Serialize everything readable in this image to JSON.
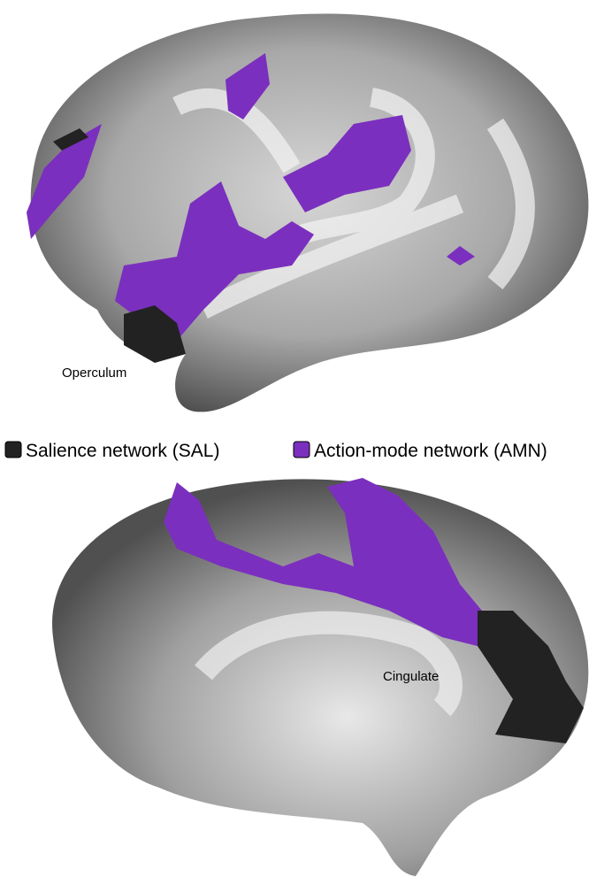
{
  "labels": {
    "top": "Operculum",
    "bottom": "Cingulate"
  },
  "legend": [
    {
      "name": "Salience network (SAL)",
      "color": "#222222"
    },
    {
      "name": "Action-mode network (AMN)",
      "color": "#7b2fbe"
    }
  ]
}
